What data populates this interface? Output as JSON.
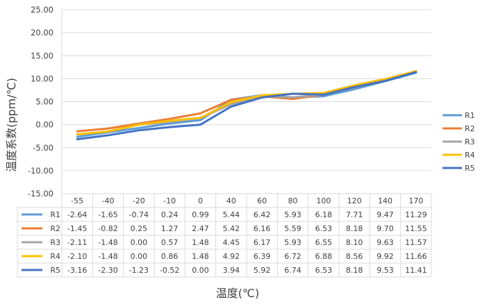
{
  "chart_data": {
    "type": "line",
    "title": "",
    "xlabel": "温度(℃)",
    "ylabel": "温度系数(ppm/℃)",
    "categories": [
      "-55",
      "-40",
      "-20",
      "-10",
      "0",
      "40",
      "60",
      "80",
      "100",
      "120",
      "140",
      "170"
    ],
    "ylim": [
      -15,
      25
    ],
    "ytick_labels": [
      "25.00",
      "20.00",
      "15.00",
      "10.00",
      "5.00",
      "0.00",
      "-5.00",
      "-10.00",
      "-15.00"
    ],
    "grid": true,
    "legend_position": "right",
    "data_table": true,
    "series": [
      {
        "name": "R1",
        "color": "#5B9BD5",
        "values": [
          -2.64,
          -1.65,
          -0.74,
          0.24,
          0.99,
          5.44,
          6.42,
          5.93,
          6.18,
          7.71,
          9.47,
          11.29
        ],
        "labels": [
          "-2.64",
          "-1.65",
          "-0.74",
          "0.24",
          "0.99",
          "5.44",
          "6.42",
          "5.93",
          "6.18",
          "7.71",
          "9.47",
          "11.29"
        ]
      },
      {
        "name": "R2",
        "color": "#ED7D31",
        "values": [
          -1.45,
          -0.82,
          0.25,
          1.27,
          2.47,
          5.42,
          6.16,
          5.59,
          6.53,
          8.18,
          9.7,
          11.55
        ],
        "labels": [
          "-1.45",
          "-0.82",
          "0.25",
          "1.27",
          "2.47",
          "5.42",
          "6.16",
          "5.59",
          "6.53",
          "8.18",
          "9.70",
          "11.55"
        ]
      },
      {
        "name": "R3",
        "color": "#A5A5A5",
        "values": [
          -2.11,
          -1.48,
          0.0,
          0.57,
          1.48,
          4.45,
          6.17,
          5.93,
          6.55,
          8.1,
          9.63,
          11.57
        ],
        "labels": [
          "-2.11",
          "-1.48",
          "0.00",
          "0.57",
          "1.48",
          "4.45",
          "6.17",
          "5.93",
          "6.55",
          "8.10",
          "9.63",
          "11.57"
        ]
      },
      {
        "name": "R4",
        "color": "#FFC000",
        "values": [
          -2.1,
          -1.48,
          0.0,
          0.86,
          1.48,
          4.92,
          6.39,
          6.72,
          6.88,
          8.56,
          9.92,
          11.66
        ],
        "labels": [
          "-2.10",
          "-1.48",
          "0.00",
          "0.86",
          "1.48",
          "4.92",
          "6.39",
          "6.72",
          "6.88",
          "8.56",
          "9.92",
          "11.66"
        ]
      },
      {
        "name": "R5",
        "color": "#4472C4",
        "values": [
          -3.16,
          -2.3,
          -1.23,
          -0.52,
          0.0,
          3.94,
          5.92,
          6.74,
          6.53,
          8.18,
          9.53,
          11.41
        ],
        "labels": [
          "-3.16",
          "-2.30",
          "-1.23",
          "-0.52",
          "0.00",
          "3.94",
          "5.92",
          "6.74",
          "6.53",
          "8.18",
          "9.53",
          "11.41"
        ]
      }
    ]
  }
}
